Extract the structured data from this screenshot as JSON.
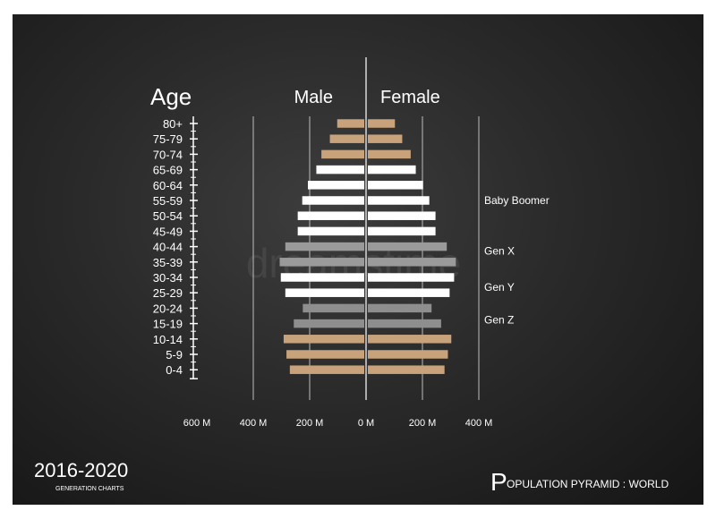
{
  "chart_data": {
    "type": "bar",
    "title": "Age",
    "left_label": "Male",
    "right_label": "Female",
    "categories": [
      "80+",
      "75-79",
      "70-74",
      "65-69",
      "60-64",
      "55-59",
      "50-54",
      "45-49",
      "40-44",
      "35-39",
      "30-34",
      "25-29",
      "20-24",
      "15-19",
      "10-14",
      "5-9",
      "0-4"
    ],
    "xlim": [
      -400,
      400
    ],
    "x_tick_labels": [
      "600 M",
      "400 M",
      "200 M",
      "0 M",
      "200 M",
      "400 M"
    ],
    "grid": true,
    "series": [
      {
        "name": "Male",
        "values": [
          96,
          122,
          152,
          170,
          200,
          220,
          236,
          236,
          280,
          300,
          296,
          280,
          218,
          250,
          286,
          276,
          264
        ]
      },
      {
        "name": "Female",
        "values": [
          96,
          122,
          152,
          170,
          196,
          218,
          240,
          240,
          280,
          312,
          306,
          290,
          226,
          260,
          296,
          284,
          272
        ]
      }
    ],
    "bar_colors": [
      "#c8a27a",
      "#c8a27a",
      "#c8a27a",
      "#ffffff",
      "#ffffff",
      "#ffffff",
      "#ffffff",
      "#ffffff",
      "#9a9a9a",
      "#9a9a9a",
      "#ffffff",
      "#ffffff",
      "#8e8e8e",
      "#8e8e8e",
      "#c8a27a",
      "#c8a27a",
      "#c8a27a"
    ],
    "annotations": [
      {
        "text": "Baby Boomer",
        "category": "55-59"
      },
      {
        "text": "Gen X",
        "category": "40-44"
      },
      {
        "text": "Gen Y",
        "category": "30-34"
      },
      {
        "text": "Gen Z",
        "category": "20-24"
      }
    ]
  },
  "footer": {
    "period": "2016-2020",
    "period_subtitle": "GENERATION CHARTS",
    "caption_initial": "P",
    "caption_rest": "OPULATION PYRAMID : WORLD"
  },
  "watermark": "dreamstime",
  "colors": {
    "background": "#262626",
    "tan": "#c8a27a",
    "white": "#ffffff",
    "gray": "#9a9a9a",
    "grid": "#bdbdbd"
  }
}
